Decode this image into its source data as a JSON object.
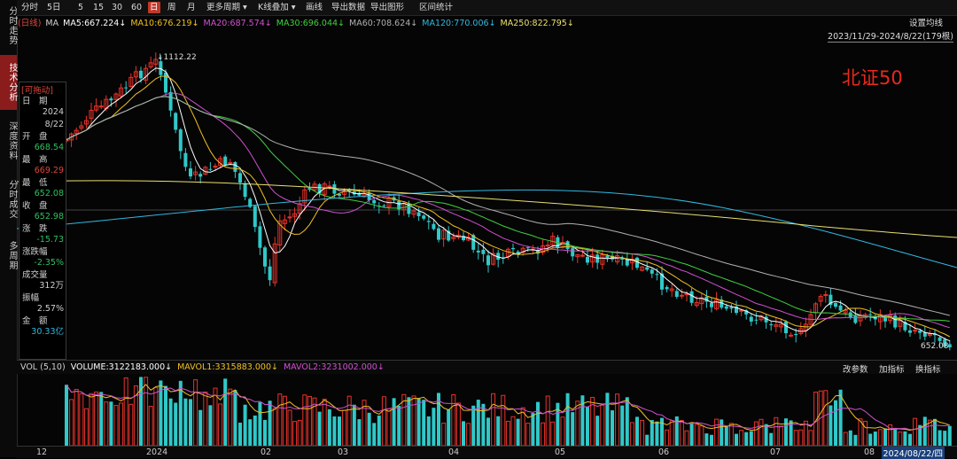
{
  "sidebar": {
    "tabs": [
      {
        "label": "分时走势",
        "active": false
      },
      {
        "label": "技术分析",
        "active": true
      },
      {
        "label": "深度资料",
        "active": false
      },
      {
        "label": "分时成交",
        "active": false
      },
      {
        "label": "多周期",
        "active": false
      }
    ]
  },
  "toolbar": {
    "items": [
      "分时",
      "5日",
      "5",
      "15",
      "30",
      "60",
      "日",
      "周",
      "月",
      "更多周期 ▾",
      "K线叠加 ▾",
      "画线",
      "导出数据",
      "导出图形",
      "区间统计"
    ],
    "active_index": 6
  },
  "ma_legend": [
    {
      "text": "(日线)",
      "color": "#e0463a"
    },
    {
      "text": "MA",
      "color": "#cfcfcf"
    },
    {
      "text": "MA5:667.224↓",
      "color": "#ffffff"
    },
    {
      "text": "MA10:676.219↓",
      "color": "#f0c020"
    },
    {
      "text": "MA20:687.574↓",
      "color": "#d050d0"
    },
    {
      "text": "MA30:696.044↓",
      "color": "#40d040"
    },
    {
      "text": "MA60:708.624↓",
      "color": "#b0b0b0"
    },
    {
      "text": "MA120:770.006↓",
      "color": "#30b8e0"
    },
    {
      "text": "MA250:822.795↓",
      "color": "#e8e070"
    }
  ],
  "settings_label": "设置均线",
  "date_range": "2023/11/29-2024/8/22(179根)",
  "overlay_title": "北证50",
  "info_panel": {
    "header": "[可拖动]",
    "rows": [
      {
        "label": "日　期",
        "value": "2024",
        "vcolor": "#cfcfcf"
      },
      {
        "label": "",
        "value": "8/22",
        "vcolor": "#cfcfcf"
      },
      {
        "label": "开　盘",
        "value": "668.54",
        "vcolor": "#30c060"
      },
      {
        "label": "最　高",
        "value": "669.29",
        "vcolor": "#e0463a"
      },
      {
        "label": "最　低",
        "value": "652.08",
        "vcolor": "#30c060"
      },
      {
        "label": "收　盘",
        "value": "652.98",
        "vcolor": "#30c060"
      },
      {
        "label": "涨　跌",
        "value": "-15.73",
        "vcolor": "#30c060"
      },
      {
        "label": "涨跌幅",
        "value": "-2.35%",
        "vcolor": "#30c060"
      },
      {
        "label": "成交量",
        "value": "312万",
        "vcolor": "#cfcfcf"
      },
      {
        "label": "振幅",
        "value": "2.57%",
        "vcolor": "#cfcfcf"
      },
      {
        "label": "金　额",
        "value": "30.33亿",
        "vcolor": "#30b8e0"
      }
    ]
  },
  "annotations": {
    "high_label": "1112.22",
    "low_label": "652.08"
  },
  "volume": {
    "legend": [
      {
        "text": "VOL (5,10)",
        "color": "#cfcfcf"
      },
      {
        "text": "VOLUME:3122183.000↓",
        "color": "#ffffff"
      },
      {
        "text": "MAVOL1:3315883.000↓",
        "color": "#f0c020"
      },
      {
        "text": "MAVOL2:3231002.000↓",
        "color": "#d050d0"
      }
    ],
    "buttons": [
      "改参数",
      "加指标",
      "换指标"
    ]
  },
  "x_axis": {
    "ticks": [
      "12",
      "2024",
      "02",
      "03",
      "04",
      "05",
      "06",
      "07",
      "08"
    ],
    "current_date": "2024/08/22/四"
  },
  "colors": {
    "up": "#e8322a",
    "down": "#30c8c8"
  }
}
